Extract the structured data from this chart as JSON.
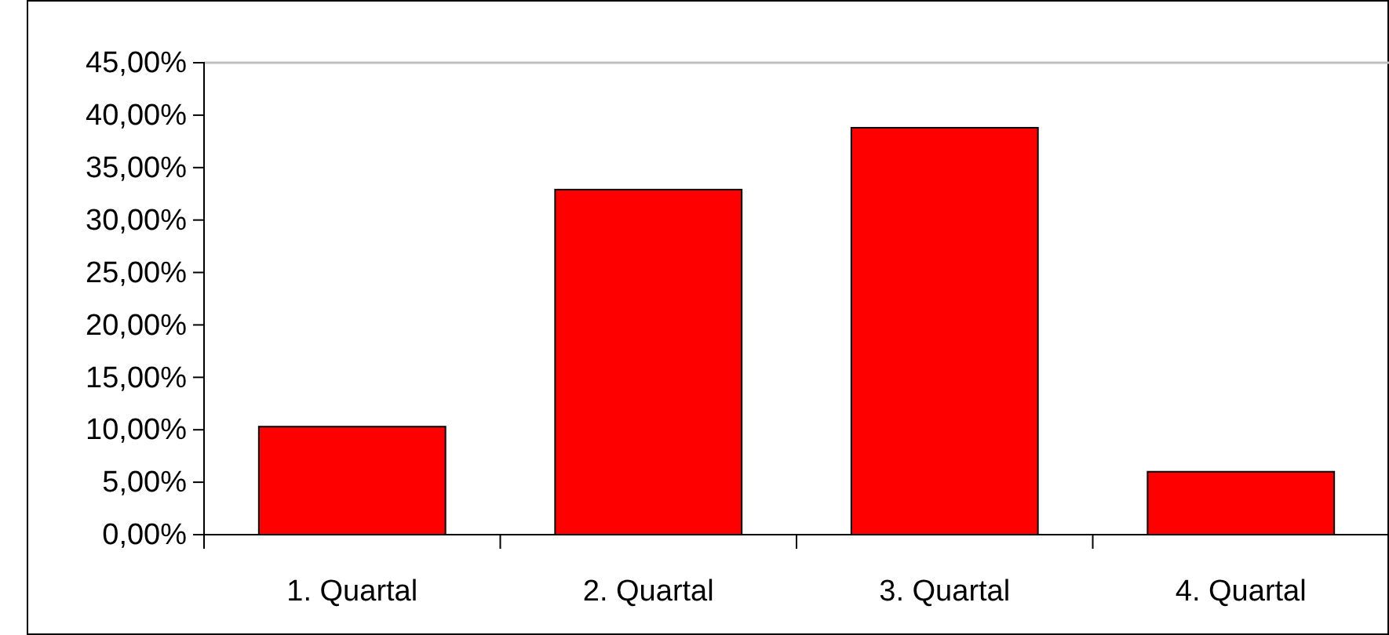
{
  "chart_data": {
    "type": "bar",
    "categories": [
      "1. Quartal",
      "2. Quartal",
      "3. Quartal",
      "4. Quartal"
    ],
    "values": [
      10.3,
      32.9,
      38.8,
      6
    ],
    "color": "#ff0000",
    "ylim": [
      0,
      45
    ],
    "yticks": [
      {
        "value": 0,
        "label": "0,00%"
      },
      {
        "value": 5,
        "label": "5,00%"
      },
      {
        "value": 10,
        "label": "10,00%"
      },
      {
        "value": 15,
        "label": "15,00%"
      },
      {
        "value": 20,
        "label": "20,00%"
      },
      {
        "value": 25,
        "label": "25,00%"
      },
      {
        "value": 30,
        "label": "30,00%"
      },
      {
        "value": 35,
        "label": "35,00%"
      },
      {
        "value": 40,
        "label": "40,00%"
      },
      {
        "value": 45,
        "label": "45,00%"
      }
    ],
    "grid": false
  }
}
